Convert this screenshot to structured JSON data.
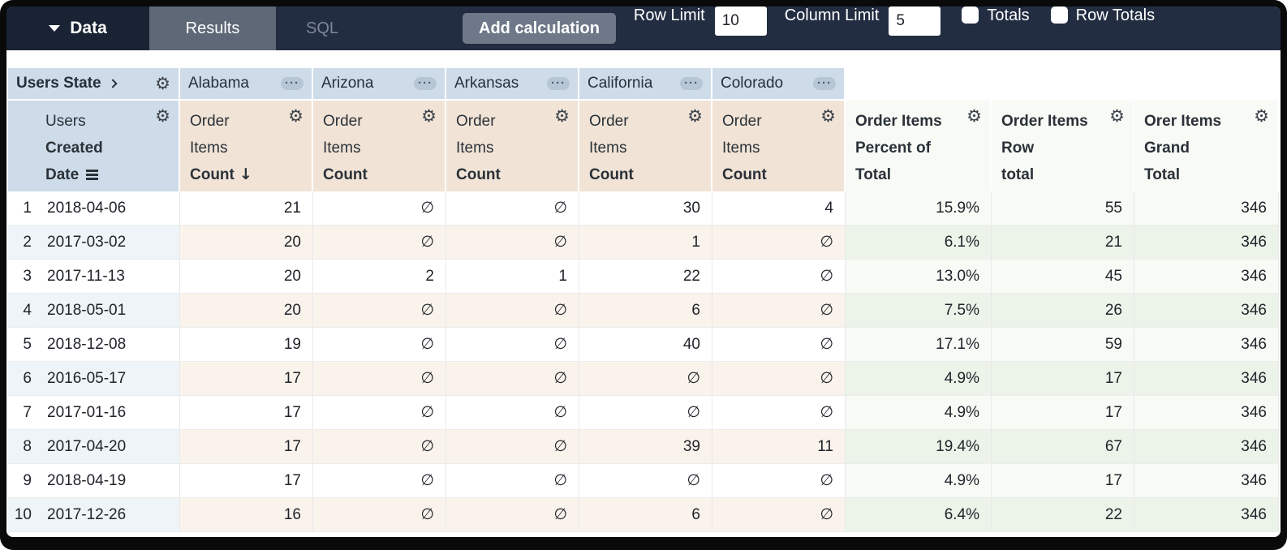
{
  "toolbar": {
    "data_label": "Data",
    "results_label": "Results",
    "sql_label": "SQL",
    "add_calculation_label": "Add calculation",
    "row_limit_label": "Row Limit",
    "row_limit_value": "10",
    "column_limit_label": "Column Limit",
    "column_limit_value": "5",
    "totals_label": "Totals",
    "row_totals_label": "Row Totals"
  },
  "colors": {
    "topbar_navy": "#222d42",
    "pivot_blue": "#cedce9",
    "measure_tan": "#f1e4d7",
    "calc_green": "#dcead7"
  },
  "table": {
    "pivot": {
      "label": "Users State",
      "values": [
        "Alabama",
        "Arizona",
        "Arkansas",
        "California",
        "Colorado"
      ]
    },
    "dimension_header": {
      "l1": "Users",
      "l2": "Created",
      "l3": "Date"
    },
    "measure_headers": [
      {
        "l1": "Order",
        "l2": "Items",
        "l3": "Count",
        "sort": "desc"
      },
      {
        "l1": "Order",
        "l2": "Items",
        "l3": "Count"
      },
      {
        "l1": "Order",
        "l2": "Items",
        "l3": "Count"
      },
      {
        "l1": "Order",
        "l2": "Items",
        "l3": "Count"
      },
      {
        "l1": "Order",
        "l2": "Items",
        "l3": "Count"
      }
    ],
    "calc_headers": [
      {
        "l1": "Order Items",
        "l2": "Percent of",
        "l3": "Total"
      },
      {
        "l1": "Order Items",
        "l2": "Row",
        "l3": "total"
      },
      {
        "l1": "Orer Items",
        "l2": "Grand",
        "l3": "Total"
      }
    ],
    "null_symbol": "∅",
    "rows": [
      {
        "n": "1",
        "date": "2018-04-06",
        "v0": "21",
        "v1": "∅",
        "v2": "∅",
        "v3": "30",
        "v4": "4",
        "pct": "15.9%",
        "rt": "55",
        "gt": "346"
      },
      {
        "n": "2",
        "date": "2017-03-02",
        "v0": "20",
        "v1": "∅",
        "v2": "∅",
        "v3": "1",
        "v4": "∅",
        "pct": "6.1%",
        "rt": "21",
        "gt": "346"
      },
      {
        "n": "3",
        "date": "2017-11-13",
        "v0": "20",
        "v1": "2",
        "v2": "1",
        "v3": "22",
        "v4": "∅",
        "pct": "13.0%",
        "rt": "45",
        "gt": "346"
      },
      {
        "n": "4",
        "date": "2018-05-01",
        "v0": "20",
        "v1": "∅",
        "v2": "∅",
        "v3": "6",
        "v4": "∅",
        "pct": "7.5%",
        "rt": "26",
        "gt": "346"
      },
      {
        "n": "5",
        "date": "2018-12-08",
        "v0": "19",
        "v1": "∅",
        "v2": "∅",
        "v3": "40",
        "v4": "∅",
        "pct": "17.1%",
        "rt": "59",
        "gt": "346"
      },
      {
        "n": "6",
        "date": "2016-05-17",
        "v0": "17",
        "v1": "∅",
        "v2": "∅",
        "v3": "∅",
        "v4": "∅",
        "pct": "4.9%",
        "rt": "17",
        "gt": "346"
      },
      {
        "n": "7",
        "date": "2017-01-16",
        "v0": "17",
        "v1": "∅",
        "v2": "∅",
        "v3": "∅",
        "v4": "∅",
        "pct": "4.9%",
        "rt": "17",
        "gt": "346"
      },
      {
        "n": "8",
        "date": "2017-04-20",
        "v0": "17",
        "v1": "∅",
        "v2": "∅",
        "v3": "39",
        "v4": "11",
        "pct": "19.4%",
        "rt": "67",
        "gt": "346"
      },
      {
        "n": "9",
        "date": "2018-04-19",
        "v0": "17",
        "v1": "∅",
        "v2": "∅",
        "v3": "∅",
        "v4": "∅",
        "pct": "4.9%",
        "rt": "17",
        "gt": "346"
      },
      {
        "n": "10",
        "date": "2017-12-26",
        "v0": "16",
        "v1": "∅",
        "v2": "∅",
        "v3": "6",
        "v4": "∅",
        "pct": "6.4%",
        "rt": "22",
        "gt": "346"
      }
    ]
  }
}
